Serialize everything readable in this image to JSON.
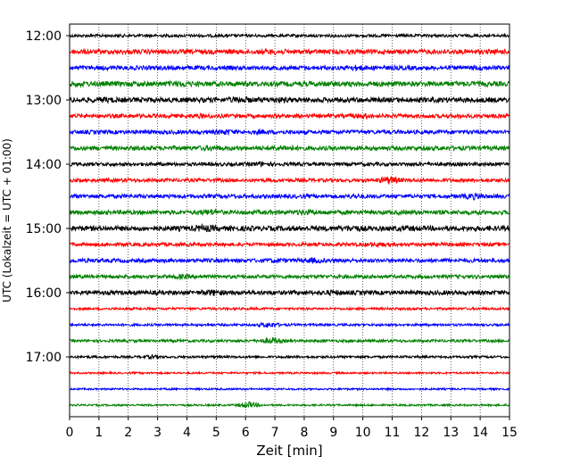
{
  "chart_data": {
    "type": "line",
    "title": "",
    "xlabel": "Zeit  [min]",
    "ylabel": "UTC (Lokalzeit = UTC + 01:00)",
    "xlim": [
      0,
      15
    ],
    "x_ticks": [
      0,
      1,
      2,
      3,
      4,
      5,
      6,
      7,
      8,
      9,
      10,
      11,
      12,
      13,
      14,
      15
    ],
    "x_tick_labels": [
      "0",
      "1",
      "2",
      "3",
      "4",
      "5",
      "6",
      "7",
      "8",
      "9",
      "10",
      "11",
      "12",
      "13",
      "14",
      "15"
    ],
    "y_tick_labels": [
      "12:00",
      "13:00",
      "14:00",
      "15:00",
      "16:00",
      "17:00"
    ],
    "grid": "vertical dotted",
    "trace_colors": [
      "#000000",
      "#ff0000",
      "#0000ff",
      "#008000"
    ],
    "traces": [
      {
        "start": "12:00",
        "color": "#000000",
        "amplitude": 1.6,
        "bursts": []
      },
      {
        "start": "12:15",
        "color": "#ff0000",
        "amplitude": 2.6,
        "bursts": [
          [
            7.0,
            3.5
          ]
        ]
      },
      {
        "start": "12:30",
        "color": "#0000ff",
        "amplitude": 2.4,
        "bursts": [
          [
            9.8,
            3.5
          ],
          [
            14.0,
            3.0
          ]
        ]
      },
      {
        "start": "12:45",
        "color": "#008000",
        "amplitude": 2.8,
        "bursts": [
          [
            0.3,
            3.5
          ],
          [
            3.8,
            4.0
          ],
          [
            12.5,
            3.0
          ]
        ]
      },
      {
        "start": "13:00",
        "color": "#000000",
        "amplitude": 2.8,
        "bursts": [
          [
            1.2,
            3.5
          ],
          [
            5.8,
            4.0
          ],
          [
            7.0,
            3.5
          ]
        ]
      },
      {
        "start": "13:15",
        "color": "#ff0000",
        "amplitude": 2.2,
        "bursts": [
          [
            4.5,
            3.0
          ],
          [
            10.0,
            3.5
          ]
        ]
      },
      {
        "start": "13:30",
        "color": "#0000ff",
        "amplitude": 2.2,
        "bursts": [
          [
            5.3,
            3.5
          ],
          [
            6.5,
            3.0
          ]
        ]
      },
      {
        "start": "13:45",
        "color": "#008000",
        "amplitude": 2.4,
        "bursts": [
          [
            4.8,
            3.5
          ],
          [
            7.3,
            3.5
          ]
        ]
      },
      {
        "start": "14:00",
        "color": "#000000",
        "amplitude": 2.0,
        "bursts": [
          [
            6.5,
            3.0
          ]
        ]
      },
      {
        "start": "14:15",
        "color": "#ff0000",
        "amplitude": 2.0,
        "bursts": [
          [
            10.9,
            5.0
          ]
        ]
      },
      {
        "start": "14:30",
        "color": "#0000ff",
        "amplitude": 2.2,
        "bursts": [
          [
            9.7,
            3.0
          ],
          [
            13.8,
            4.0
          ]
        ]
      },
      {
        "start": "14:45",
        "color": "#008000",
        "amplitude": 2.4,
        "bursts": [
          [
            4.8,
            4.0
          ],
          [
            8.0,
            3.5
          ]
        ]
      },
      {
        "start": "15:00",
        "color": "#000000",
        "amplitude": 2.8,
        "bursts": [
          [
            4.6,
            4.5
          ],
          [
            9.6,
            4.0
          ],
          [
            11.5,
            3.5
          ]
        ]
      },
      {
        "start": "15:15",
        "color": "#ff0000",
        "amplitude": 2.0,
        "bursts": [
          [
            10.5,
            3.0
          ]
        ]
      },
      {
        "start": "15:30",
        "color": "#0000ff",
        "amplitude": 2.2,
        "bursts": [
          [
            7.0,
            3.0
          ],
          [
            8.3,
            3.5
          ]
        ]
      },
      {
        "start": "15:45",
        "color": "#008000",
        "amplitude": 2.0,
        "bursts": [
          [
            3.8,
            3.0
          ]
        ]
      },
      {
        "start": "16:00",
        "color": "#000000",
        "amplitude": 2.4,
        "bursts": [
          [
            4.9,
            4.0
          ],
          [
            9.0,
            3.5
          ]
        ]
      },
      {
        "start": "16:15",
        "color": "#ff0000",
        "amplitude": 1.3,
        "bursts": []
      },
      {
        "start": "16:30",
        "color": "#0000ff",
        "amplitude": 1.3,
        "bursts": [
          [
            6.8,
            3.5
          ]
        ]
      },
      {
        "start": "16:45",
        "color": "#008000",
        "amplitude": 1.5,
        "bursts": [
          [
            6.9,
            4.0
          ]
        ]
      },
      {
        "start": "17:00",
        "color": "#000000",
        "amplitude": 1.3,
        "bursts": [
          [
            2.8,
            2.5
          ]
        ]
      },
      {
        "start": "17:15",
        "color": "#ff0000",
        "amplitude": 1.0,
        "bursts": []
      },
      {
        "start": "17:30",
        "color": "#0000ff",
        "amplitude": 1.0,
        "bursts": []
      },
      {
        "start": "17:45",
        "color": "#008000",
        "amplitude": 1.0,
        "bursts": [
          [
            6.1,
            4.0
          ]
        ]
      }
    ]
  }
}
